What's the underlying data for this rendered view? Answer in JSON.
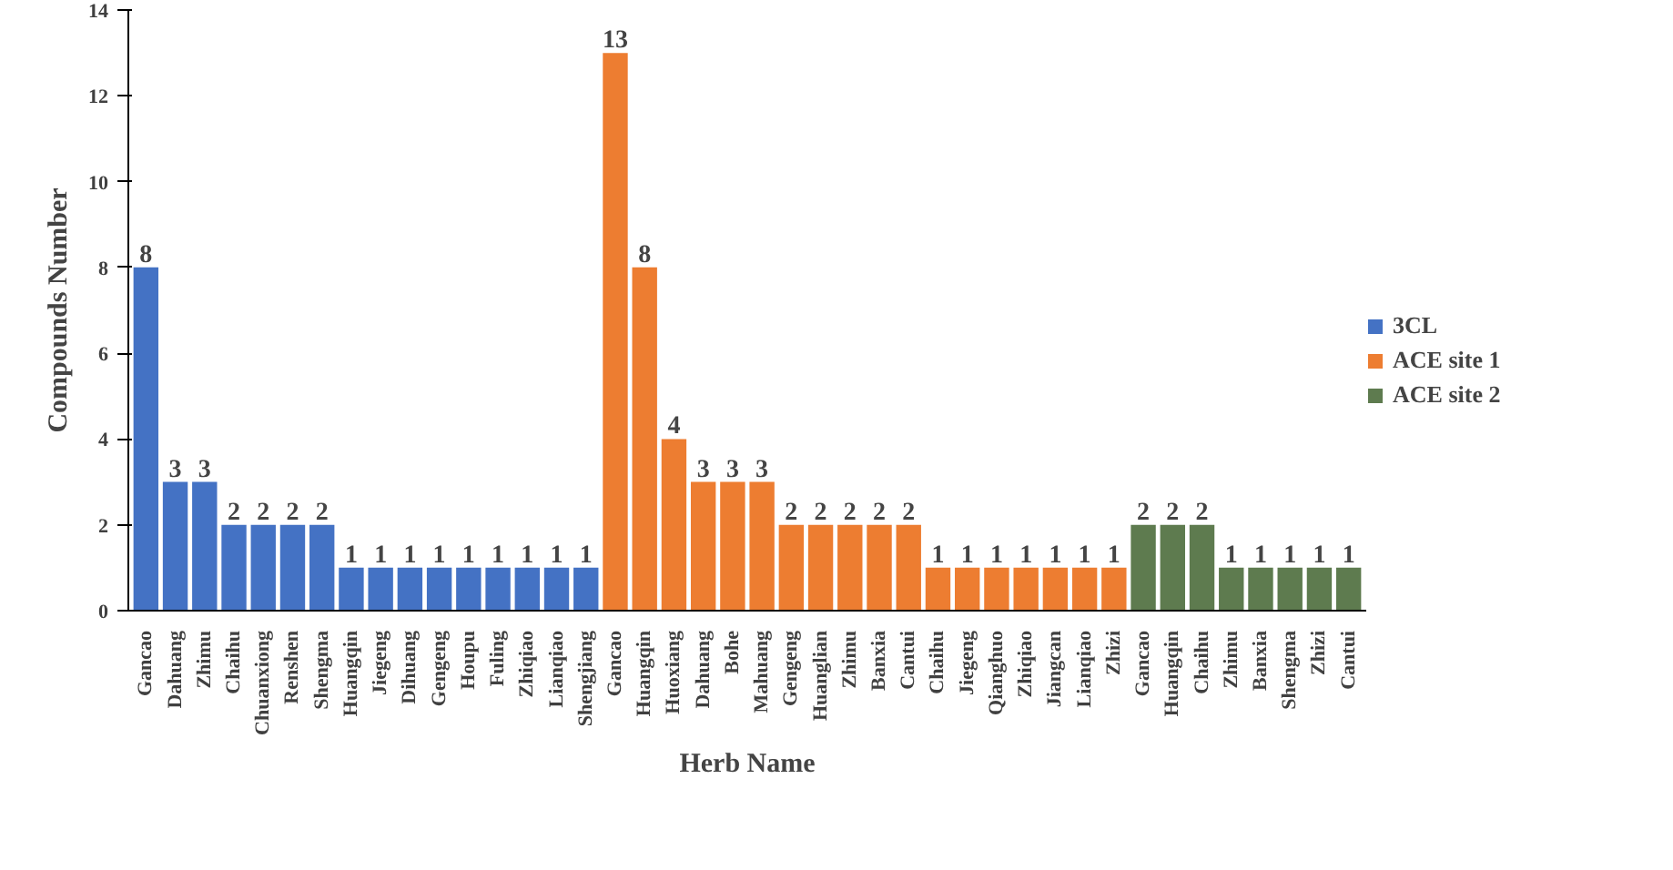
{
  "chart_data": {
    "type": "bar",
    "xlabel": "Herb Name",
    "ylabel": "Compounds Number",
    "categories": [
      "Gancao",
      "Dahuang",
      "Zhimu",
      "Chaihu",
      "Chuanxiong",
      "Renshen",
      "Shengma",
      "Huangqin",
      "Jiegeng",
      "Dihuang",
      "Gengeng",
      "Houpu",
      "Fuling",
      "Zhiqiao",
      "Lianqiao",
      "Shengjiang",
      "Gancao",
      "Huangqin",
      "Huoxiang",
      "Dahuang",
      "Bohe",
      "Mahuang",
      "Gengeng",
      "Huanglian",
      "Zhimu",
      "Banxia",
      "Cantui",
      "Chaihu",
      "Jiegeng",
      "Qianghuo",
      "Zhiqiao",
      "Jiangcan",
      "Lianqiao",
      "Zhizi",
      "Gancao",
      "Huangqin",
      "Chaihu",
      "Zhimu",
      "Banxia",
      "Shengma",
      "Zhizi",
      "Cantui"
    ],
    "series": [
      {
        "name": "3CL",
        "color": "#4472c4",
        "values": [
          8,
          3,
          3,
          2,
          2,
          2,
          2,
          1,
          1,
          1,
          1,
          1,
          1,
          1,
          1,
          1,
          null,
          null,
          null,
          null,
          null,
          null,
          null,
          null,
          null,
          null,
          null,
          null,
          null,
          null,
          null,
          null,
          null,
          null,
          null,
          null,
          null,
          null,
          null,
          null,
          null,
          null
        ]
      },
      {
        "name": "ACE site 1",
        "color": "#ed7d31",
        "values": [
          null,
          null,
          null,
          null,
          null,
          null,
          null,
          null,
          null,
          null,
          null,
          null,
          null,
          null,
          null,
          null,
          13,
          8,
          4,
          3,
          3,
          3,
          2,
          2,
          2,
          2,
          2,
          1,
          1,
          1,
          1,
          1,
          1,
          1,
          null,
          null,
          null,
          null,
          null,
          null,
          null,
          null
        ]
      },
      {
        "name": "ACE site 2",
        "color": "#5e7b4f",
        "values": [
          null,
          null,
          null,
          null,
          null,
          null,
          null,
          null,
          null,
          null,
          null,
          null,
          null,
          null,
          null,
          null,
          null,
          null,
          null,
          null,
          null,
          null,
          null,
          null,
          null,
          null,
          null,
          null,
          null,
          null,
          null,
          null,
          null,
          null,
          2,
          2,
          2,
          1,
          1,
          1,
          1,
          1
        ]
      }
    ],
    "ylim": [
      0,
      14
    ],
    "yticks": [
      0,
      2,
      4,
      6,
      8,
      10,
      12,
      14
    ],
    "grid": false,
    "legend": "right",
    "data_labels": true
  }
}
